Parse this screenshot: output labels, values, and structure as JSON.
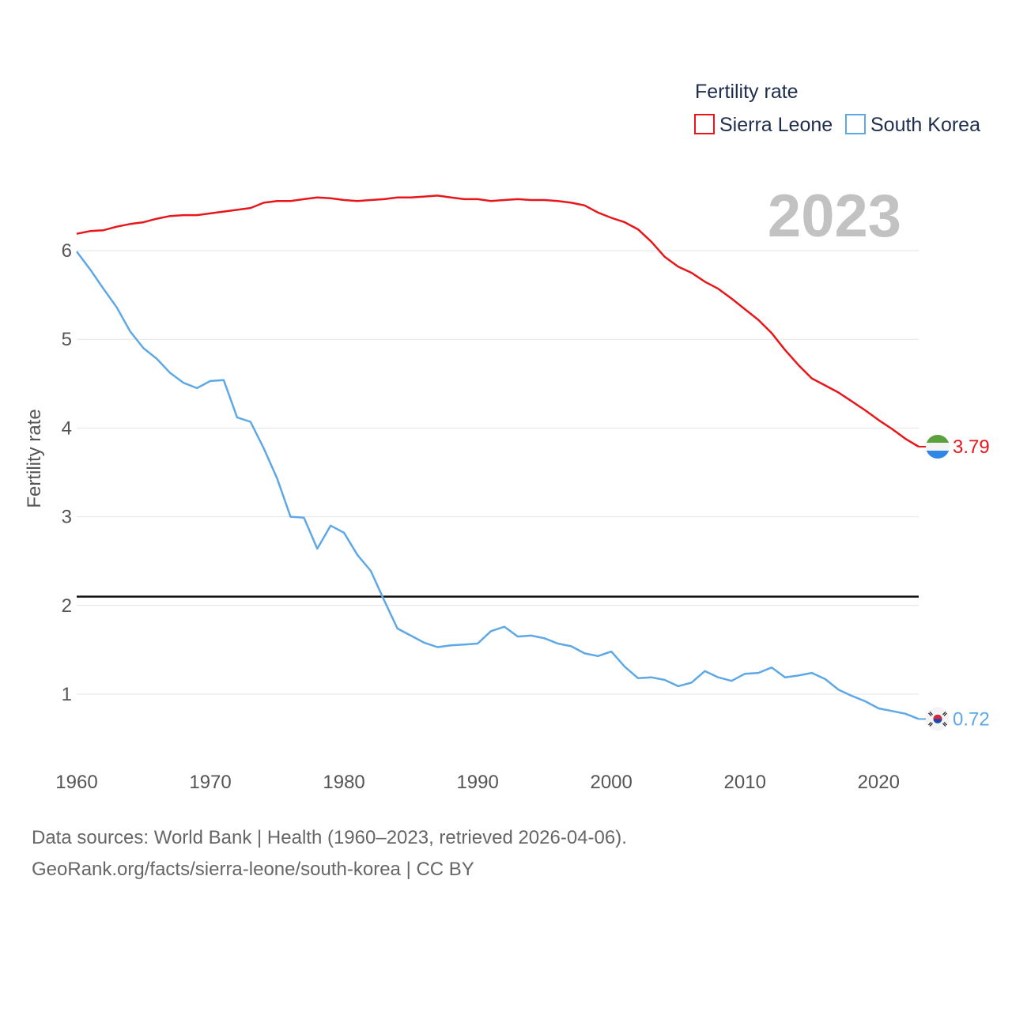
{
  "chart_data": {
    "type": "line",
    "legend_title": "Fertility rate",
    "ylabel": "Fertility rate",
    "year_label": "2023",
    "xlim": [
      1960,
      2023
    ],
    "ylim": [
      0.4,
      6.7
    ],
    "x_ticks": [
      1960,
      1970,
      1980,
      1990,
      2000,
      2010,
      2020
    ],
    "y_ticks": [
      1,
      2,
      3,
      4,
      5,
      6
    ],
    "reference_line": 2.1,
    "x": [
      1960,
      1961,
      1962,
      1963,
      1964,
      1965,
      1966,
      1967,
      1968,
      1969,
      1970,
      1971,
      1972,
      1973,
      1974,
      1975,
      1976,
      1977,
      1978,
      1979,
      1980,
      1981,
      1982,
      1983,
      1984,
      1985,
      1986,
      1987,
      1988,
      1989,
      1990,
      1991,
      1992,
      1993,
      1994,
      1995,
      1996,
      1997,
      1998,
      1999,
      2000,
      2001,
      2002,
      2003,
      2004,
      2005,
      2006,
      2007,
      2008,
      2009,
      2010,
      2011,
      2012,
      2013,
      2014,
      2015,
      2016,
      2017,
      2018,
      2019,
      2020,
      2021,
      2022,
      2023
    ],
    "series": [
      {
        "name": "Sierra Leone",
        "color": "#e8161a",
        "end_label": "3.79",
        "values": [
          6.19,
          6.22,
          6.23,
          6.27,
          6.3,
          6.32,
          6.36,
          6.39,
          6.4,
          6.4,
          6.42,
          6.44,
          6.46,
          6.48,
          6.54,
          6.56,
          6.56,
          6.58,
          6.6,
          6.59,
          6.57,
          6.56,
          6.57,
          6.58,
          6.6,
          6.6,
          6.61,
          6.62,
          6.6,
          6.58,
          6.58,
          6.56,
          6.57,
          6.58,
          6.57,
          6.57,
          6.56,
          6.54,
          6.51,
          6.43,
          6.37,
          6.32,
          6.24,
          6.1,
          5.93,
          5.82,
          5.75,
          5.65,
          5.57,
          5.46,
          5.34,
          5.22,
          5.07,
          4.88,
          4.71,
          4.56,
          4.48,
          4.4,
          4.3,
          4.2,
          4.09,
          3.99,
          3.88,
          3.79
        ]
      },
      {
        "name": "South Korea",
        "color": "#5ea8e6",
        "end_label": "0.72",
        "values": [
          5.99,
          5.79,
          5.57,
          5.36,
          5.09,
          4.9,
          4.78,
          4.62,
          4.51,
          4.45,
          4.53,
          4.54,
          4.12,
          4.07,
          3.77,
          3.43,
          3.0,
          2.99,
          2.64,
          2.9,
          2.82,
          2.57,
          2.39,
          2.06,
          1.74,
          1.66,
          1.58,
          1.53,
          1.55,
          1.56,
          1.57,
          1.71,
          1.76,
          1.65,
          1.66,
          1.63,
          1.57,
          1.54,
          1.46,
          1.43,
          1.48,
          1.31,
          1.18,
          1.19,
          1.16,
          1.09,
          1.13,
          1.26,
          1.19,
          1.15,
          1.23,
          1.24,
          1.3,
          1.19,
          1.21,
          1.24,
          1.17,
          1.05,
          0.98,
          0.92,
          0.84,
          0.81,
          0.78,
          0.72
        ]
      }
    ]
  },
  "footer": {
    "line1": "Data sources: World Bank | Health (1960–2023, retrieved 2026-04-06).",
    "line2": "GeoRank.org/facts/sierra-leone/south-korea | CC BY"
  },
  "icons": {
    "sierra_leone_flag": "sierra-leone-flag-icon",
    "south_korea_flag": "south-korea-flag-icon"
  }
}
